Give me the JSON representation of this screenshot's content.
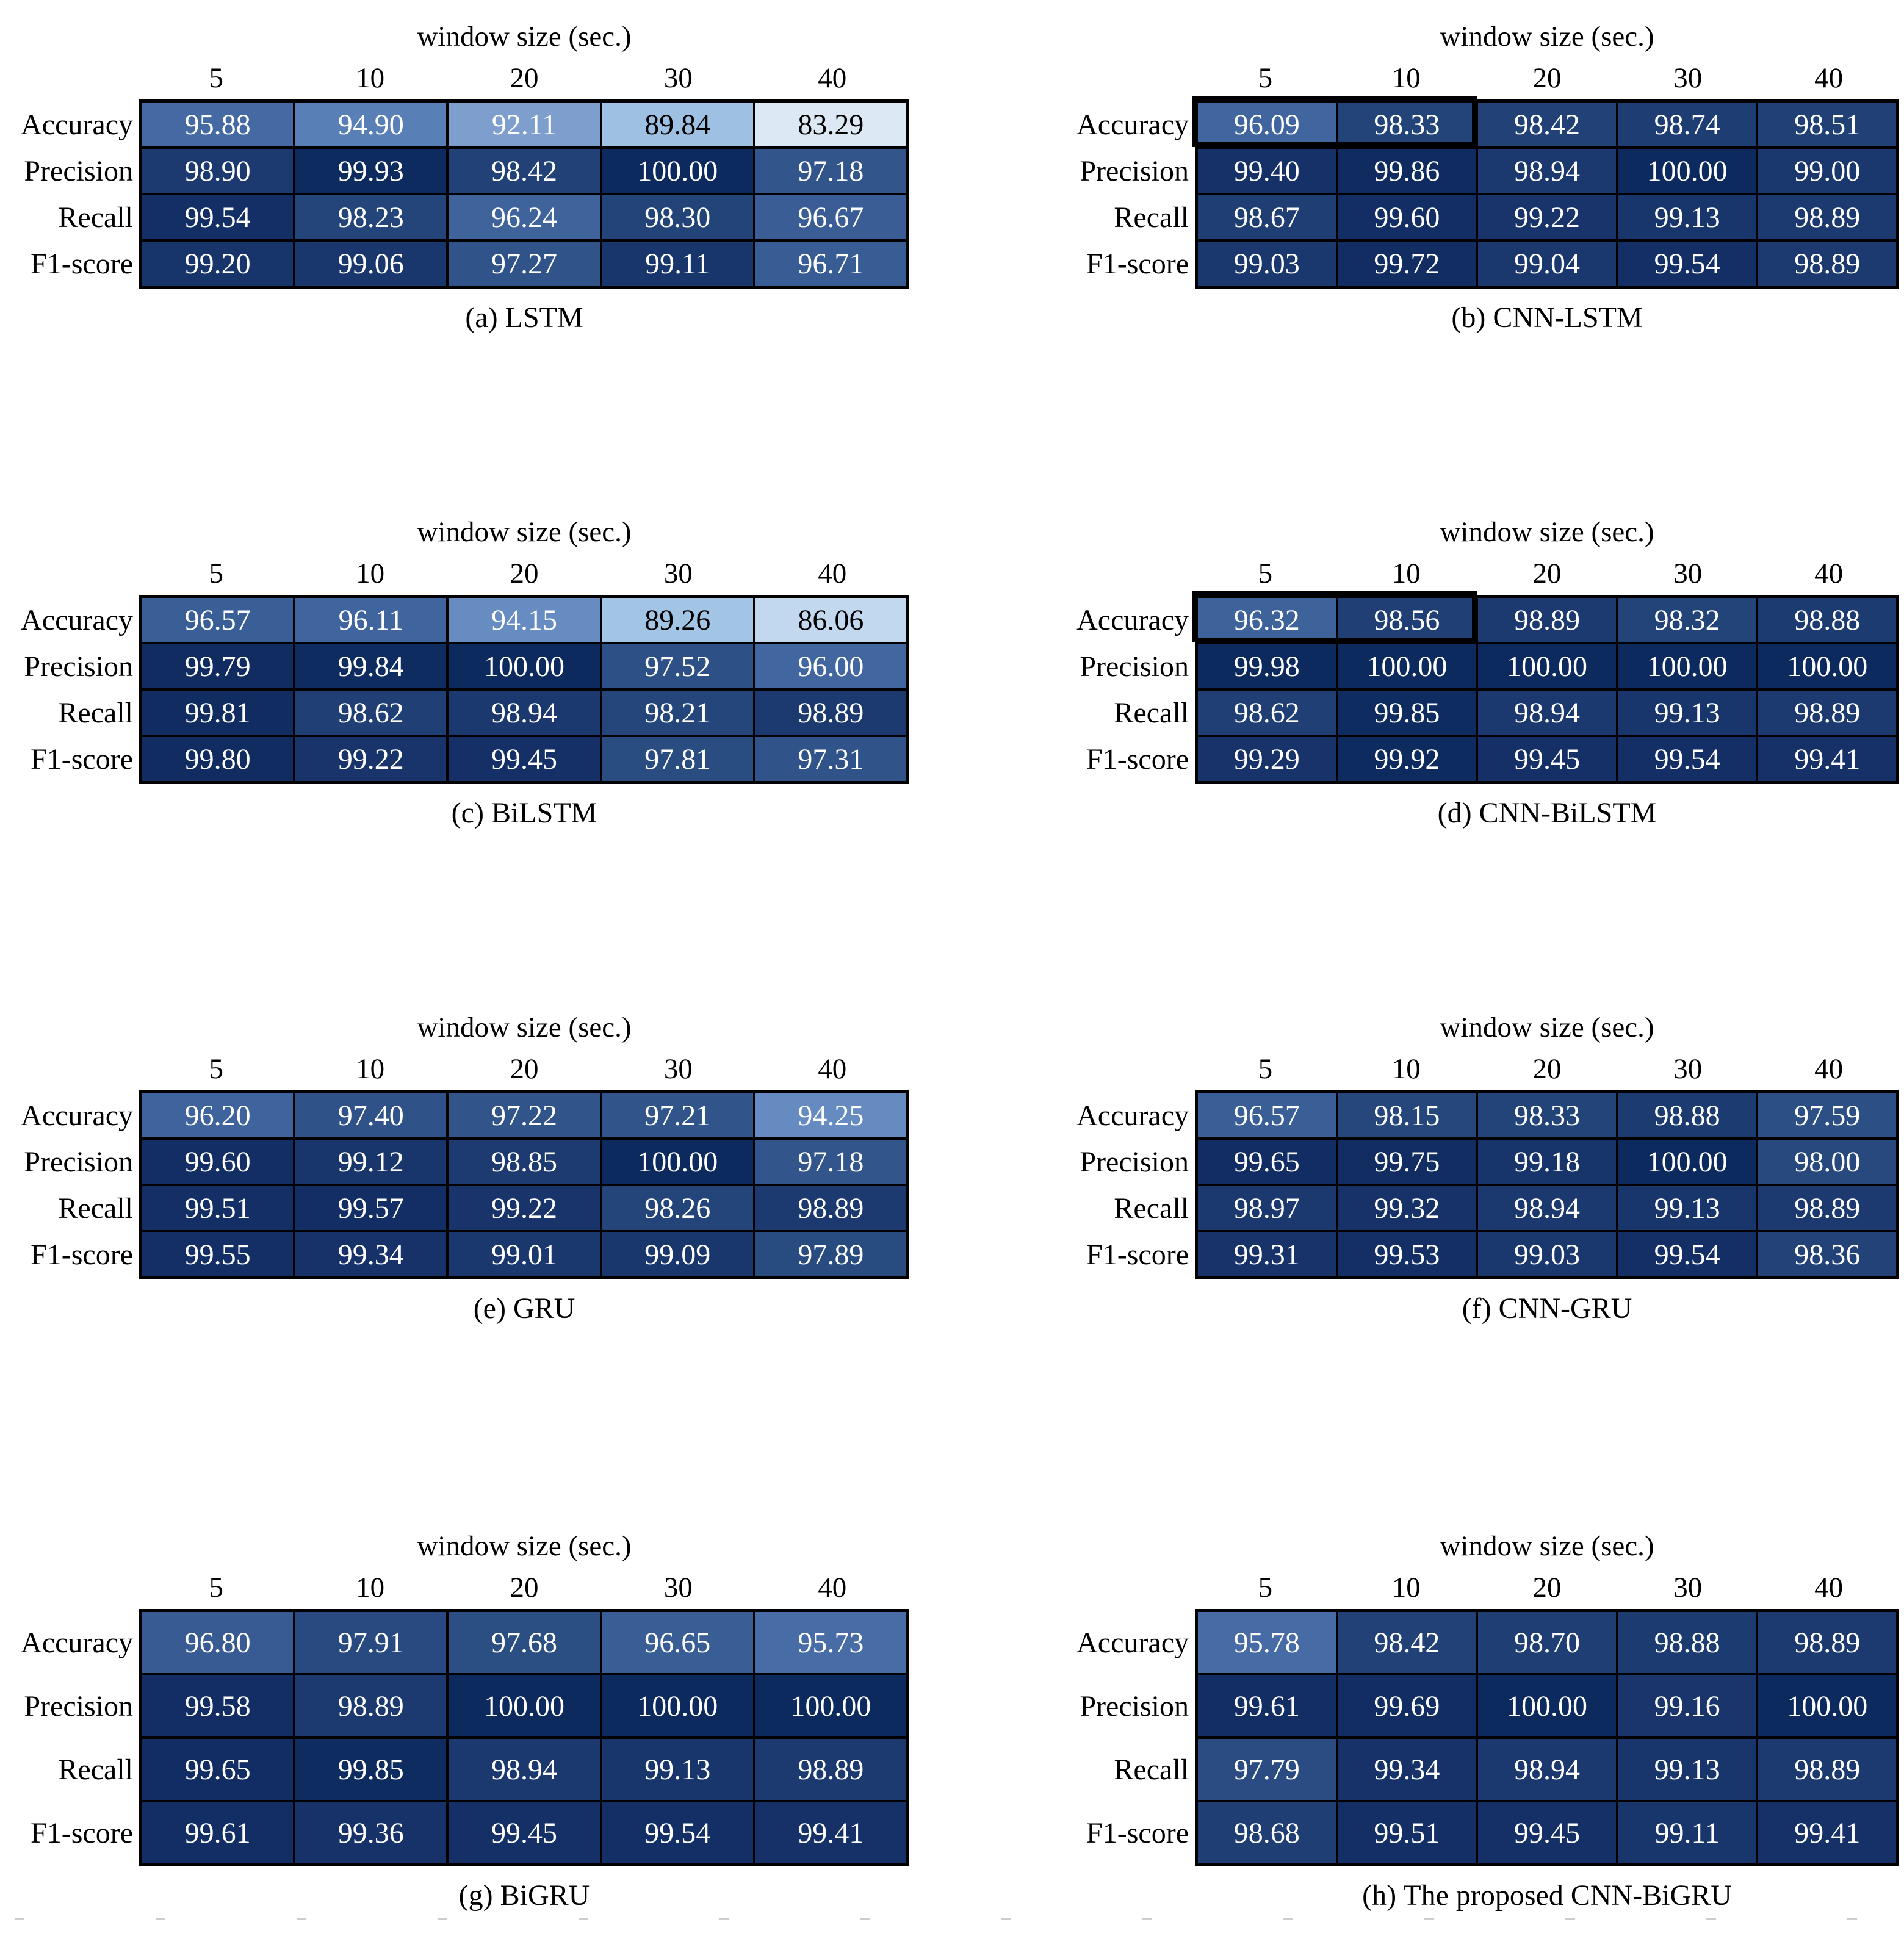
{
  "figure": {
    "background": "#ffffff",
    "axis_title": "window size (sec.)",
    "col_labels": [
      "5",
      "10",
      "20",
      "30",
      "40"
    ],
    "row_labels": [
      "Accuracy",
      "Precision",
      "Recall",
      "F1-score"
    ]
  },
  "colormap": {
    "description": "blue heatmap shading from light (low) to dark navy (high)",
    "anchors": [
      [
        83.29,
        "#dce9f5"
      ],
      [
        90.0,
        "#9cc0e3"
      ],
      [
        92.0,
        "#7fa0ce"
      ],
      [
        94.5,
        "#6289bf"
      ],
      [
        96.0,
        "#42669f"
      ],
      [
        97.0,
        "#34588f"
      ],
      [
        98.0,
        "#27497e"
      ],
      [
        98.75,
        "#1e3d72"
      ],
      [
        99.5,
        "#142f66"
      ],
      [
        100.0,
        "#0d2a5e"
      ]
    ],
    "text_light": "#ffffff",
    "text_dark": "#000000",
    "dark_text_below_value": 91.0,
    "grid_line_color": "#000000"
  },
  "chart_data": [
    {
      "type": "heatmap",
      "title": "(a) LSTM",
      "x_title": "window size (sec.)",
      "x": [
        "5",
        "10",
        "20",
        "30",
        "40"
      ],
      "y": [
        "Accuracy",
        "Precision",
        "Recall",
        "F1-score"
      ],
      "values": [
        [
          95.88,
          94.9,
          92.11,
          89.84,
          83.29
        ],
        [
          98.9,
          99.93,
          98.42,
          100.0,
          97.18
        ],
        [
          99.54,
          98.23,
          96.24,
          98.3,
          96.67
        ],
        [
          99.2,
          99.06,
          97.27,
          99.11,
          96.71
        ]
      ],
      "highlight": null
    },
    {
      "type": "heatmap",
      "title": "(b) CNN-LSTM",
      "x_title": "window size (sec.)",
      "x": [
        "5",
        "10",
        "20",
        "30",
        "40"
      ],
      "y": [
        "Accuracy",
        "Precision",
        "Recall",
        "F1-score"
      ],
      "values": [
        [
          96.09,
          98.33,
          98.42,
          98.74,
          98.51
        ],
        [
          99.4,
          99.86,
          98.94,
          100.0,
          99.0
        ],
        [
          98.67,
          99.6,
          99.22,
          99.13,
          98.89
        ],
        [
          99.03,
          99.72,
          99.04,
          99.54,
          98.89
        ]
      ],
      "highlight": {
        "rows": [
          0
        ],
        "cols": [
          0,
          1
        ]
      }
    },
    {
      "type": "heatmap",
      "title": "(c) BiLSTM",
      "x_title": "window size (sec.)",
      "x": [
        "5",
        "10",
        "20",
        "30",
        "40"
      ],
      "y": [
        "Accuracy",
        "Precision",
        "Recall",
        "F1-score"
      ],
      "values": [
        [
          96.57,
          96.11,
          94.15,
          89.26,
          86.06
        ],
        [
          99.79,
          99.84,
          100.0,
          97.52,
          96.0
        ],
        [
          99.81,
          98.62,
          98.94,
          98.21,
          98.89
        ],
        [
          99.8,
          99.22,
          99.45,
          97.81,
          97.31
        ]
      ],
      "highlight": null
    },
    {
      "type": "heatmap",
      "title": "(d) CNN-BiLSTM",
      "x_title": "window size (sec.)",
      "x": [
        "5",
        "10",
        "20",
        "30",
        "40"
      ],
      "y": [
        "Accuracy",
        "Precision",
        "Recall",
        "F1-score"
      ],
      "values": [
        [
          96.32,
          98.56,
          98.89,
          98.32,
          98.88
        ],
        [
          99.98,
          100.0,
          100.0,
          100.0,
          100.0
        ],
        [
          98.62,
          99.85,
          98.94,
          99.13,
          98.89
        ],
        [
          99.29,
          99.92,
          99.45,
          99.54,
          99.41
        ]
      ],
      "highlight": {
        "rows": [
          0
        ],
        "cols": [
          0,
          1
        ]
      }
    },
    {
      "type": "heatmap",
      "title": "(e) GRU",
      "x_title": "window size (sec.)",
      "x": [
        "5",
        "10",
        "20",
        "30",
        "40"
      ],
      "y": [
        "Accuracy",
        "Precision",
        "Recall",
        "F1-score"
      ],
      "values": [
        [
          96.2,
          97.4,
          97.22,
          97.21,
          94.25
        ],
        [
          99.6,
          99.12,
          98.85,
          100.0,
          97.18
        ],
        [
          99.51,
          99.57,
          99.22,
          98.26,
          98.89
        ],
        [
          99.55,
          99.34,
          99.01,
          99.09,
          97.89
        ]
      ],
      "highlight": null
    },
    {
      "type": "heatmap",
      "title": "(f) CNN-GRU",
      "x_title": "window size (sec.)",
      "x": [
        "5",
        "10",
        "20",
        "30",
        "40"
      ],
      "y": [
        "Accuracy",
        "Precision",
        "Recall",
        "F1-score"
      ],
      "values": [
        [
          96.57,
          98.15,
          98.33,
          98.88,
          97.59
        ],
        [
          99.65,
          99.75,
          99.18,
          100.0,
          98.0
        ],
        [
          98.97,
          99.32,
          98.94,
          99.13,
          98.89
        ],
        [
          99.31,
          99.53,
          99.03,
          99.54,
          98.36
        ]
      ],
      "highlight": null
    },
    {
      "type": "heatmap",
      "title": "(g) BiGRU",
      "x_title": "window size (sec.)",
      "x": [
        "5",
        "10",
        "20",
        "30",
        "40"
      ],
      "y": [
        "Accuracy",
        "Precision",
        "Recall",
        "F1-score"
      ],
      "values": [
        [
          96.8,
          97.91,
          97.68,
          96.65,
          95.73
        ],
        [
          99.58,
          98.89,
          100.0,
          100.0,
          100.0
        ],
        [
          99.65,
          99.85,
          98.94,
          99.13,
          98.89
        ],
        [
          99.61,
          99.36,
          99.45,
          99.54,
          99.41
        ]
      ],
      "highlight": null
    },
    {
      "type": "heatmap",
      "title": "(h) The proposed CNN-BiGRU",
      "x_title": "window size (sec.)",
      "x": [
        "5",
        "10",
        "20",
        "30",
        "40"
      ],
      "y": [
        "Accuracy",
        "Precision",
        "Recall",
        "F1-score"
      ],
      "values": [
        [
          95.78,
          98.42,
          98.7,
          98.88,
          98.89
        ],
        [
          99.61,
          99.69,
          100.0,
          99.16,
          100.0
        ],
        [
          97.79,
          99.34,
          98.94,
          99.13,
          98.89
        ],
        [
          98.68,
          99.51,
          99.45,
          99.11,
          99.41
        ]
      ],
      "highlight": null
    }
  ]
}
